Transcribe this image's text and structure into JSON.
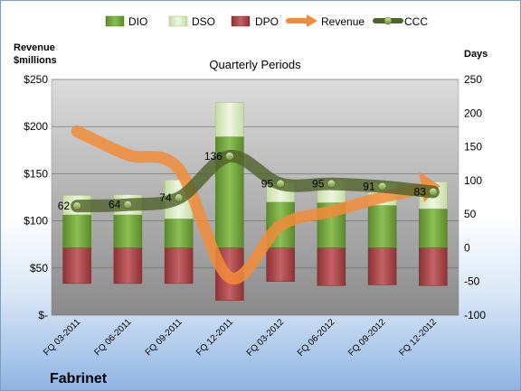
{
  "company": "Fabrinet",
  "chart_data": {
    "type": "bar",
    "title": "Quarterly Periods",
    "left_axis_label": "Revenue $millions",
    "right_axis_label": "Days",
    "categories": [
      "FQ 03-2011",
      "FQ 06-2011",
      "FQ 09-2011",
      "FQ 12-2011",
      "FQ 03-2012",
      "FQ 06-2012",
      "FQ 09-2012",
      "FQ 12-2012"
    ],
    "left_ylim": [
      0,
      250
    ],
    "left_ticks": [
      "$-",
      "$50",
      "$100",
      "$150",
      "$200",
      "$250"
    ],
    "right_ylim": [
      -100,
      250
    ],
    "right_ticks": [
      "-100",
      "-50",
      "0",
      "50",
      "100",
      "150",
      "200",
      "250"
    ],
    "grid": true,
    "legend_position": "top",
    "series": [
      {
        "name": "DIO",
        "type": "bar-stacked",
        "axis": "right",
        "color": "#77a344",
        "values": [
          49,
          49,
          43,
          165,
          68,
          67,
          63,
          58
        ]
      },
      {
        "name": "DSO",
        "type": "bar-stacked",
        "axis": "right",
        "color": "#d8eac0",
        "values": [
          29,
          30,
          58,
          51,
          29,
          33,
          34,
          40
        ]
      },
      {
        "name": "DPO",
        "type": "bar-stacked-negative",
        "axis": "right",
        "color": "#b04f52",
        "values": [
          -53,
          -53,
          -53,
          -78,
          -50,
          -56,
          -55,
          -56
        ]
      },
      {
        "name": "Revenue",
        "type": "line",
        "axis": "left",
        "color": "#f28c3a",
        "values": [
          195,
          170,
          155,
          40,
          95,
          110,
          125,
          137
        ]
      },
      {
        "name": "CCC",
        "type": "line",
        "axis": "right",
        "color": "#4f6228",
        "values": [
          62,
          64,
          74,
          136,
          95,
          95,
          91,
          83
        ]
      }
    ],
    "data_labels": [
      "62",
      "64",
      "74",
      "136",
      "95",
      "95",
      "91",
      "83"
    ]
  }
}
